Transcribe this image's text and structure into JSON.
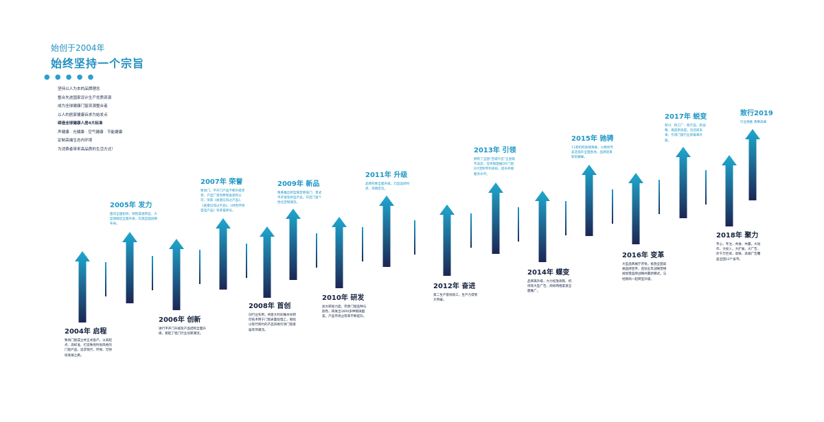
{
  "header": {
    "subtitle": "始创于2004年",
    "title": "始终坚持一个宗旨",
    "dots": "● ● ● ● ●"
  },
  "principles": [
    {
      "text": "坚持以人为本的品牌理念",
      "strong": false
    },
    {
      "text": "整合先进国家设计生产优质资源",
      "strong": false
    },
    {
      "text": "成为全球健康门窗资源整合者",
      "strong": false
    },
    {
      "text": "以人的居家健康诉求为始发点",
      "strong": false
    },
    {
      "text": "缔造全球健康人居4大标准",
      "strong": true
    },
    {
      "text": "声健康 · 光健康 · 空气健康 · 节能健康",
      "strong": false
    },
    {
      "text": "定制高端生态内环境",
      "strong": false
    },
    {
      "text": "为消费者带来高品质的生活方式！",
      "strong": false
    }
  ],
  "milestones": [
    {
      "year_title": "2004年 启程",
      "position": "below",
      "description": "致尚门窗成立并正式投产。以高起点、高标准、打造致尚时尚风格的门窗产品，追求现代、环保、可持续发展之路。"
    },
    {
      "year_title": "2005年 发力",
      "position": "above",
      "description": "面向全国招商，销售渠道转型，大型旗舰店全面升级，实施全国战略布局。"
    },
    {
      "year_title": "2006年 创新",
      "position": "below",
      "description": "进行平开门升级及产品结构全面升级，掀起了铝门行业创新潮流。"
    },
    {
      "year_title": "2007年 荣誉",
      "position": "above",
      "description": "致尚门，平开门产品不断升级完善，产品广受消费者喜爱和认可，荣获《质量信得过产品》、《质量信得过产品》、《绿色环保首选产品》等荣誉称号。"
    },
    {
      "year_title": "2008年 首创",
      "position": "below",
      "description": "创行业先例，将意大利彩釉木纹转印技术用于门窗表面处理上，继续以现代简约的产品风格引领门窗家居装饰潮流。"
    },
    {
      "year_title": "2009年 新品",
      "position": "above",
      "description": "隆重推出新型隔音降噪门、景式平开窗等新型产品，开启门窗个性化定制潮流。"
    },
    {
      "year_title": "2010年 研发",
      "position": "below",
      "description": "加大研发力度，完善门窗品种与颜色，研发出1600多种玻璃图案，产品市场占有率不断提升。"
    },
    {
      "year_title": "2011年 升级",
      "position": "above",
      "description": "品牌形象全面升级，凸显品牌时尚、高端定位。"
    },
    {
      "year_title": "2012年 奋进",
      "position": "below",
      "description": "第二生产基地动工，生产力得到大突破。"
    },
    {
      "year_title": "2013年 引领",
      "position": "above",
      "description": "拥有了全国“百城千店”五星级专卖店，在终端首推DIY门窗DIY定制专利系统，提升终端服务水平。"
    },
    {
      "year_title": "2014年 蝶变",
      "position": "below",
      "description": "品牌再升级，大力投放高铁、机场等大型广告，商标网络渠道全面推广。"
    },
    {
      "year_title": "2015年 驰骋",
      "position": "above",
      "description": "11家机构高端来展，以致尚专卖店提升全国各地，品牌迎来新的巅峰。"
    },
    {
      "year_title": "2016年 变革",
      "position": "below",
      "description": "大型品牌展厅开张，投放全国高端品牌宣传，启动五年战略营销规划暨品牌战略共赢新模式，与经销商一起转型升级。"
    },
    {
      "year_title": "2017年 蜕变",
      "position": "above",
      "description": "新VI、新工厂、新产品、新战略、再迎新高度，创造新未来，引领门窗行业新篇章升级。"
    },
    {
      "year_title": "2018年  聚力",
      "position": "below",
      "description": "专心、专注，共进、共赢，大动作、大投入，大扩展，大广告，斥千万巨资，高铁、高端广告覆盖全国13个省市。"
    },
    {
      "year_title": "致行2019",
      "position": "above",
      "description": "行业致胜 勇攀高峰"
    }
  ],
  "colors": {
    "arrow_top": "#1fa8cf",
    "arrow_bottom": "#1c2653",
    "accent": "#1f8fc0",
    "dark": "#14213d"
  }
}
